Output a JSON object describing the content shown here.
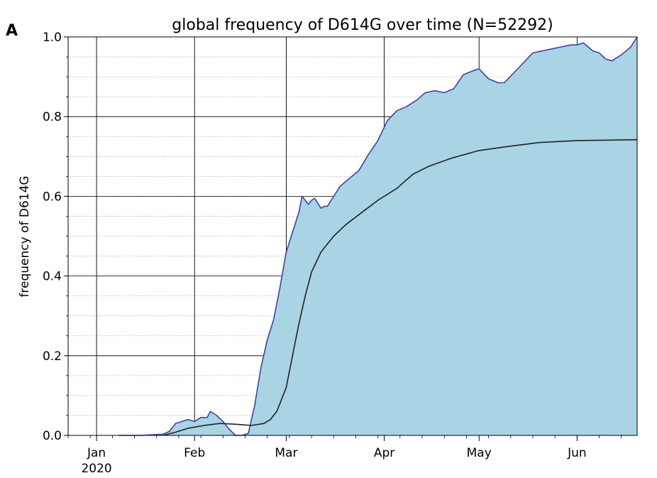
{
  "chart_data": {
    "type": "area",
    "panel_label": "A",
    "title": "global frequency of D614G over time (N=52292)",
    "xlabel": "",
    "ylabel": "frequency of D614G",
    "ylim": [
      0,
      1
    ],
    "xlim": [
      "2019-12-23",
      "2020-06-20"
    ],
    "y_ticks": [
      "0.0",
      "0.2",
      "0.4",
      "0.6",
      "0.8",
      "1.0"
    ],
    "y_minor_step": 0.05,
    "x_ticks": [
      {
        "date": "2020-01-01",
        "label": "Jan",
        "sublabel": "2020"
      },
      {
        "date": "2020-02-01",
        "label": "Feb",
        "sublabel": ""
      },
      {
        "date": "2020-03-01",
        "label": "Mar",
        "sublabel": ""
      },
      {
        "date": "2020-04-01",
        "label": "Apr",
        "sublabel": ""
      },
      {
        "date": "2020-05-01",
        "label": "May",
        "sublabel": ""
      },
      {
        "date": "2020-06-01",
        "label": "Jun",
        "sublabel": ""
      }
    ],
    "grid": true,
    "series": [
      {
        "style": "filled area",
        "fill_color": "#a8d4e3",
        "line_color": "#3344bb",
        "x": [
          "2020-01-08",
          "2020-01-15",
          "2020-01-22",
          "2020-01-24",
          "2020-01-26",
          "2020-01-28",
          "2020-01-30",
          "2020-02-01",
          "2020-02-03",
          "2020-02-05",
          "2020-02-06",
          "2020-02-08",
          "2020-02-10",
          "2020-02-12",
          "2020-02-14",
          "2020-02-16",
          "2020-02-18",
          "2020-02-20",
          "2020-02-22",
          "2020-02-24",
          "2020-02-26",
          "2020-02-28",
          "2020-03-01",
          "2020-03-03",
          "2020-03-05",
          "2020-03-06",
          "2020-03-08",
          "2020-03-09",
          "2020-03-10",
          "2020-03-12",
          "2020-03-13",
          "2020-03-14",
          "2020-03-16",
          "2020-03-18",
          "2020-03-21",
          "2020-03-24",
          "2020-03-27",
          "2020-03-30",
          "2020-04-02",
          "2020-04-05",
          "2020-04-08",
          "2020-04-11",
          "2020-04-14",
          "2020-04-17",
          "2020-04-20",
          "2020-04-23",
          "2020-04-26",
          "2020-04-29",
          "2020-05-01",
          "2020-05-04",
          "2020-05-07",
          "2020-05-09",
          "2020-05-12",
          "2020-05-15",
          "2020-05-18",
          "2020-05-21",
          "2020-05-24",
          "2020-05-27",
          "2020-05-30",
          "2020-06-01",
          "2020-06-03",
          "2020-06-06",
          "2020-06-08",
          "2020-06-10",
          "2020-06-12",
          "2020-06-15",
          "2020-06-18",
          "2020-06-20"
        ],
        "y": [
          0.0,
          0.0,
          0.003,
          0.01,
          0.03,
          0.035,
          0.04,
          0.035,
          0.045,
          0.045,
          0.06,
          0.05,
          0.035,
          0.015,
          0.0,
          0.0,
          0.005,
          0.075,
          0.17,
          0.24,
          0.29,
          0.37,
          0.46,
          0.51,
          0.56,
          0.6,
          0.58,
          0.59,
          0.595,
          0.57,
          0.575,
          0.575,
          0.6,
          0.625,
          0.645,
          0.665,
          0.705,
          0.74,
          0.79,
          0.815,
          0.825,
          0.84,
          0.86,
          0.865,
          0.86,
          0.87,
          0.905,
          0.915,
          0.92,
          0.895,
          0.885,
          0.885,
          0.91,
          0.935,
          0.96,
          0.965,
          0.97,
          0.975,
          0.98,
          0.98,
          0.985,
          0.965,
          0.96,
          0.945,
          0.94,
          0.955,
          0.975,
          1.0
        ]
      },
      {
        "style": "line",
        "line_color": "#222222",
        "x": [
          "2020-01-22",
          "2020-01-26",
          "2020-01-30",
          "2020-02-04",
          "2020-02-09",
          "2020-02-14",
          "2020-02-19",
          "2020-02-23",
          "2020-02-25",
          "2020-02-27",
          "2020-03-01",
          "2020-03-03",
          "2020-03-05",
          "2020-03-07",
          "2020-03-09",
          "2020-03-12",
          "2020-03-16",
          "2020-03-20",
          "2020-03-25",
          "2020-03-30",
          "2020-04-05",
          "2020-04-10",
          "2020-04-15",
          "2020-04-22",
          "2020-05-01",
          "2020-05-10",
          "2020-05-20",
          "2020-06-01",
          "2020-06-20"
        ],
        "y": [
          0.0,
          0.008,
          0.018,
          0.025,
          0.03,
          0.028,
          0.025,
          0.03,
          0.04,
          0.06,
          0.12,
          0.2,
          0.28,
          0.35,
          0.41,
          0.46,
          0.5,
          0.53,
          0.56,
          0.59,
          0.62,
          0.655,
          0.675,
          0.695,
          0.715,
          0.725,
          0.735,
          0.74,
          0.742
        ]
      }
    ]
  }
}
